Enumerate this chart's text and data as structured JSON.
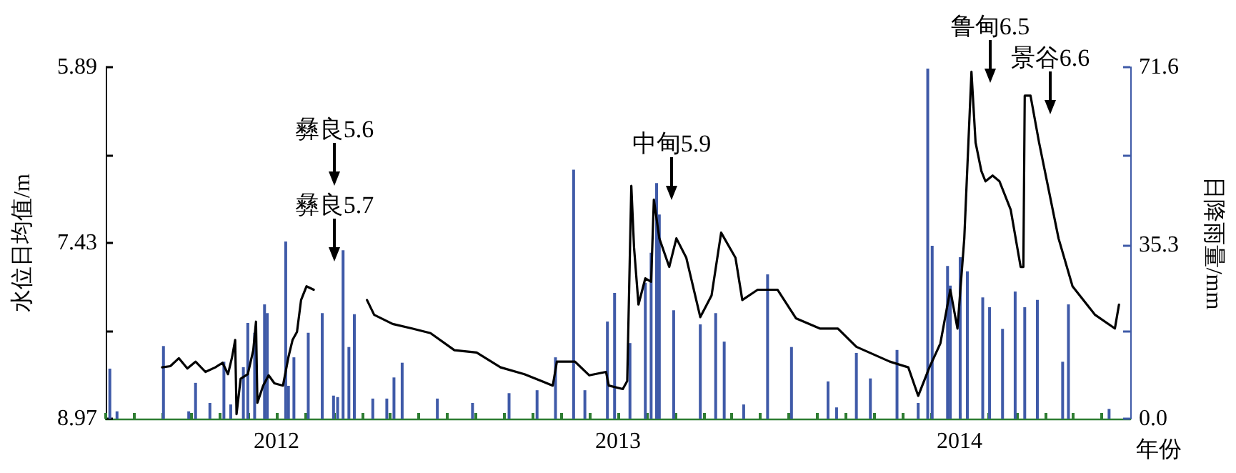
{
  "chart_data": {
    "type": "line",
    "xlabel": "年份",
    "ylabel": "水位日均值/m",
    "y2label": "日降雨量/mm",
    "xlim": [
      2012,
      2015
    ],
    "xticks": [
      {
        "value": 2012,
        "label": null
      },
      {
        "value": 2012.083,
        "label": null
      },
      {
        "value": 2012.167,
        "label": null
      },
      {
        "value": 2012.25,
        "label": null
      },
      {
        "value": 2012.333,
        "label": null
      },
      {
        "value": 2012.417,
        "label": null
      },
      {
        "value": 2012.5,
        "label": "2012"
      },
      {
        "value": 2012.583,
        "label": null
      },
      {
        "value": 2012.667,
        "label": null
      },
      {
        "value": 2012.75,
        "label": null
      },
      {
        "value": 2012.833,
        "label": null
      },
      {
        "value": 2012.917,
        "label": null
      },
      {
        "value": 2013,
        "label": null
      },
      {
        "value": 2013.083,
        "label": null
      },
      {
        "value": 2013.167,
        "label": null
      },
      {
        "value": 2013.25,
        "label": null
      },
      {
        "value": 2013.333,
        "label": null
      },
      {
        "value": 2013.417,
        "label": null
      },
      {
        "value": 2013.5,
        "label": "2013"
      },
      {
        "value": 2013.583,
        "label": null
      },
      {
        "value": 2013.667,
        "label": null
      },
      {
        "value": 2013.75,
        "label": null
      },
      {
        "value": 2013.833,
        "label": null
      },
      {
        "value": 2013.917,
        "label": null
      },
      {
        "value": 2014,
        "label": null
      },
      {
        "value": 2014.083,
        "label": null
      },
      {
        "value": 2014.167,
        "label": null
      },
      {
        "value": 2014.25,
        "label": null
      },
      {
        "value": 2014.333,
        "label": null
      },
      {
        "value": 2014.417,
        "label": null
      },
      {
        "value": 2014.5,
        "label": "2014"
      },
      {
        "value": 2014.583,
        "label": null
      },
      {
        "value": 2014.667,
        "label": null
      },
      {
        "value": 2014.75,
        "label": null
      },
      {
        "value": 2014.833,
        "label": null
      },
      {
        "value": 2014.917,
        "label": null
      }
    ],
    "ylim": [
      8.97,
      5.89
    ],
    "yticks": [
      5.89,
      {
        "value": 6.66,
        "label": null
      },
      7.43,
      {
        "value": 8.2,
        "label": null
      },
      8.97
    ],
    "y2lim": [
      0,
      71.6
    ],
    "y2ticks": [
      {
        "value": 0,
        "label": "0.0"
      },
      {
        "value": 17.9,
        "label": null
      },
      35.3,
      {
        "value": 53.7,
        "label": null
      },
      71.6
    ],
    "grid": false,
    "marker": "none",
    "line_style": "solid",
    "annotations": [
      "彝良5.6",
      "彝良5.7",
      "中甸5.9",
      "鲁甸6.5",
      "景谷6.6"
    ],
    "series": [
      {
        "type": "bar",
        "axis": "y2",
        "color": "#3f5aa8",
        "x": [
          2012.012,
          2012.033,
          2012.169,
          2012.243,
          2012.263,
          2012.305,
          2012.346,
          2012.366,
          2012.403,
          2012.416,
          2012.436,
          2012.465,
          2012.473,
          2012.527,
          2012.535,
          2012.551,
          2012.593,
          2012.634,
          2012.667,
          2012.679,
          2012.695,
          2012.712,
          2012.728,
          2012.782,
          2012.823,
          2012.844,
          2012.868,
          2012.971,
          2013.074,
          2013.181,
          2013.263,
          2013.317,
          2013.37,
          2013.403,
          2013.469,
          2013.49,
          2013.535,
          2013.58,
          2013.597,
          2013.613,
          2013.621,
          2013.663,
          2013.741,
          2013.786,
          2013.811,
          2013.868,
          2013.938,
          2014.008,
          2014.115,
          2014.14,
          2014.198,
          2014.239,
          2014.317,
          2014.379,
          2014.407,
          2014.42,
          2014.465,
          2014.473,
          2014.502,
          2014.523,
          2014.568,
          2014.588,
          2014.626,
          2014.663,
          2014.691,
          2014.728,
          2014.802,
          2014.819,
          2014.938
        ],
        "values": [
          10.2,
          1.5,
          14.8,
          1.5,
          7.3,
          3.2,
          11.6,
          2.9,
          10.5,
          19.5,
          17.5,
          23.3,
          21.5,
          36.1,
          6.7,
          12.5,
          17.5,
          21.5,
          4.7,
          4.4,
          34.3,
          14.6,
          21.3,
          4.1,
          4.1,
          8.4,
          11.4,
          4.1,
          3.2,
          5.2,
          5.8,
          12.5,
          50.7,
          5.8,
          19.8,
          25.6,
          15.4,
          27.7,
          33.8,
          48.0,
          41.6,
          22.1,
          19.2,
          21.5,
          15.7,
          2.9,
          29.4,
          14.6,
          7.6,
          2.3,
          13.4,
          8.2,
          14.0,
          3.2,
          71.3,
          35.2,
          31.1,
          27.1,
          32.9,
          30.0,
          24.7,
          22.7,
          18.3,
          25.9,
          22.7,
          24.2,
          11.6,
          23.3,
          2.0
        ]
      },
      {
        "color": "#000000",
        "x": [
          2012.165,
          2012.189,
          2012.214,
          2012.239,
          2012.263,
          2012.292,
          2012.321,
          2012.342,
          2012.358,
          2012.37,
          2012.379,
          2012.383,
          2012.395,
          2012.416,
          2012.432,
          2012.44,
          2012.444,
          2012.461,
          2012.477,
          2012.494,
          2012.519,
          2012.535,
          2012.547,
          2012.56,
          2012.572,
          2012.588,
          2012.609,
          2012.62,
          2012.765,
          2012.786,
          2012.84,
          2012.897,
          2012.951,
          2013.021,
          2013.086,
          2013.156,
          2013.226,
          2013.309,
          2013.321,
          2013.374,
          2013.416,
          2013.465,
          2013.473,
          2013.514,
          2013.527,
          2013.539,
          2013.547,
          2013.56,
          2013.58,
          2013.597,
          2013.605,
          2013.621,
          2013.65,
          2013.671,
          2013.7,
          2013.741,
          2013.774,
          2013.802,
          2013.844,
          2013.864,
          2013.909,
          2013.967,
          2014.021,
          2014.091,
          2014.144,
          2014.198,
          2014.296,
          2014.35,
          2014.379,
          2014.412,
          2014.444,
          2014.473,
          2014.494,
          2014.514,
          2014.535,
          2014.547,
          2014.564,
          2014.576,
          2014.597,
          2014.617,
          2014.65,
          2014.679,
          2014.687,
          2014.691,
          2014.708,
          2014.733,
          2014.79,
          2014.831,
          2014.897,
          2014.955,
          2014.967
        ],
        "values": [
          8.52,
          8.51,
          8.44,
          8.53,
          8.47,
          8.56,
          8.52,
          8.48,
          8.58,
          8.43,
          8.28,
          8.93,
          8.62,
          8.58,
          8.37,
          8.12,
          8.83,
          8.68,
          8.59,
          8.66,
          8.68,
          8.43,
          8.28,
          8.21,
          7.93,
          7.81,
          7.84,
          null,
          7.93,
          8.06,
          8.14,
          8.18,
          8.22,
          8.37,
          8.39,
          8.52,
          8.58,
          8.68,
          8.47,
          8.47,
          8.59,
          8.56,
          8.68,
          8.71,
          8.64,
          6.93,
          7.47,
          7.97,
          7.74,
          7.77,
          7.05,
          7.39,
          7.64,
          7.39,
          7.56,
          8.08,
          7.89,
          7.34,
          7.56,
          7.93,
          7.84,
          7.84,
          8.09,
          8.18,
          8.18,
          8.34,
          8.47,
          8.52,
          8.77,
          8.52,
          8.31,
          7.84,
          8.18,
          7.39,
          5.93,
          6.55,
          6.8,
          6.89,
          6.84,
          6.89,
          7.14,
          7.64,
          7.64,
          6.14,
          6.14,
          6.55,
          7.39,
          7.81,
          8.06,
          8.18,
          7.97
        ]
      }
    ]
  }
}
